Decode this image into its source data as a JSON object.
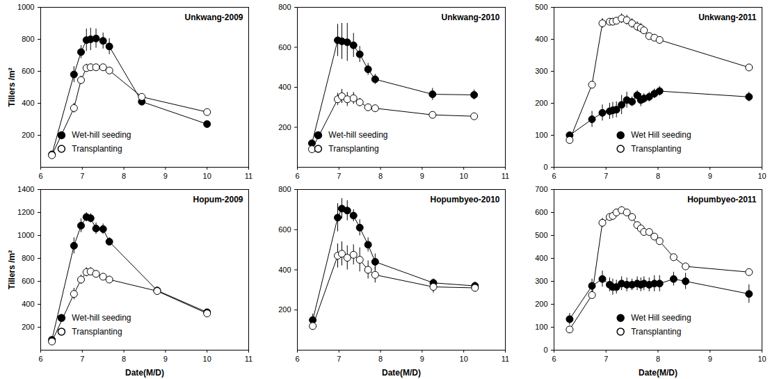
{
  "chart_data": [
    {
      "type": "line",
      "title": "Unkwang-2009",
      "ylabel": "Tillers /m²",
      "legend": "lower left",
      "xlim": [
        6,
        11
      ],
      "xticks": [
        6,
        7,
        8,
        9,
        10,
        11
      ],
      "ylim": [
        0,
        1000
      ],
      "yticks": [
        200,
        400,
        600,
        800,
        1000
      ],
      "x": [
        6.27,
        6.8,
        6.97,
        7.1,
        7.2,
        7.33,
        7.5,
        7.65,
        8.43,
        10.0
      ],
      "series": [
        {
          "name": "Wet-hill seeding",
          "color": "#000000",
          "marker": "filled_circle",
          "values": [
            80,
            580,
            720,
            795,
            800,
            805,
            790,
            755,
            410,
            270
          ],
          "errors": [
            10,
            50,
            40,
            70,
            70,
            60,
            50,
            50,
            20,
            15
          ]
        },
        {
          "name": "Transplanting",
          "color": "#000000",
          "marker": "open_circle",
          "values": [
            75,
            370,
            545,
            620,
            625,
            625,
            625,
            605,
            440,
            345
          ],
          "errors": [
            10,
            30,
            25,
            25,
            20,
            15,
            15,
            10,
            15,
            10
          ]
        }
      ]
    },
    {
      "type": "line",
      "title": "Unkwang-2010",
      "legend": "lower left",
      "xlim": [
        6,
        11
      ],
      "xticks": [
        6,
        7,
        8,
        9,
        10,
        11
      ],
      "ylim": [
        0,
        800
      ],
      "yticks": [
        200,
        400,
        600,
        800
      ],
      "x": [
        6.35,
        6.97,
        7.07,
        7.2,
        7.35,
        7.5,
        7.7,
        7.87,
        9.25,
        10.25
      ],
      "series": [
        {
          "name": "Wet-hill seeding",
          "color": "#000000",
          "marker": "filled_circle",
          "values": [
            120,
            635,
            630,
            625,
            610,
            565,
            490,
            440,
            365,
            362
          ],
          "errors": [
            15,
            80,
            90,
            95,
            60,
            40,
            30,
            25,
            30,
            25
          ]
        },
        {
          "name": "Transplanting",
          "color": "#000000",
          "marker": "open_circle",
          "values": [
            90,
            340,
            355,
            340,
            345,
            325,
            300,
            295,
            262,
            255
          ],
          "errors": [
            10,
            30,
            35,
            35,
            30,
            20,
            15,
            15,
            10,
            10
          ]
        }
      ]
    },
    {
      "type": "line",
      "title": "Unkwang-2011",
      "legend": "lower right",
      "xlim": [
        6,
        10
      ],
      "xticks": [
        6,
        7,
        8,
        9,
        10
      ],
      "ylim": [
        0,
        500
      ],
      "yticks": [
        0,
        100,
        200,
        300,
        400,
        500
      ],
      "x": [
        6.3,
        6.73,
        6.93,
        7.07,
        7.13,
        7.2,
        7.3,
        7.4,
        7.5,
        7.6,
        7.67,
        7.73,
        7.83,
        7.93,
        8.03,
        9.75
      ],
      "series": [
        {
          "name": "Wet Hill seeding",
          "color": "#000000",
          "marker": "filled_circle",
          "values": [
            100,
            150,
            170,
            175,
            178,
            180,
            195,
            210,
            205,
            225,
            210,
            215,
            220,
            230,
            238,
            220
          ],
          "errors": [
            10,
            25,
            25,
            25,
            25,
            25,
            30,
            25,
            15,
            15,
            20,
            15,
            15,
            15,
            15,
            15
          ]
        },
        {
          "name": "Transplanting",
          "color": "#000000",
          "marker": "open_circle",
          "values": [
            85,
            258,
            450,
            455,
            455,
            458,
            465,
            460,
            450,
            440,
            435,
            428,
            410,
            405,
            398,
            312
          ],
          "errors": [
            10,
            10,
            15,
            10,
            10,
            10,
            15,
            15,
            15,
            15,
            15,
            10,
            10,
            10,
            10,
            10
          ]
        }
      ]
    },
    {
      "type": "line",
      "title": "Hopum-2009",
      "ylabel": "Tillers /m²",
      "xlabel": "Date(M/D)",
      "legend": "lower left",
      "xlim": [
        6,
        11
      ],
      "xticks": [
        6,
        7,
        8,
        9,
        10,
        11
      ],
      "ylim": [
        0,
        1400
      ],
      "yticks": [
        200,
        400,
        600,
        800,
        1000,
        1200,
        1400
      ],
      "x": [
        6.27,
        6.8,
        6.97,
        7.1,
        7.2,
        7.33,
        7.5,
        7.65,
        8.8,
        10.0
      ],
      "series": [
        {
          "name": "Wet-hill seeding",
          "color": "#000000",
          "marker": "filled_circle",
          "values": [
            90,
            910,
            1085,
            1160,
            1150,
            1060,
            1055,
            945,
            520,
            330
          ],
          "errors": [
            10,
            70,
            60,
            40,
            40,
            50,
            45,
            35,
            30,
            20
          ]
        },
        {
          "name": "Transplanting",
          "color": "#000000",
          "marker": "open_circle",
          "values": [
            75,
            490,
            615,
            680,
            685,
            665,
            640,
            615,
            515,
            320
          ],
          "errors": [
            10,
            50,
            40,
            40,
            35,
            25,
            20,
            15,
            25,
            15
          ]
        }
      ]
    },
    {
      "type": "line",
      "title": "Hopumbyeo-2010",
      "xlabel": "Date(M/D)",
      "xlim": [
        6,
        11
      ],
      "xticks": [
        6,
        7,
        8,
        9,
        10,
        11
      ],
      "ylim": [
        0,
        800
      ],
      "yticks": [
        200,
        400,
        600,
        800
      ],
      "x": [
        6.37,
        6.97,
        7.07,
        7.2,
        7.35,
        7.5,
        7.7,
        7.87,
        9.27,
        10.27
      ],
      "series": [
        {
          "name": "Wet-hill seeding",
          "color": "#000000",
          "marker": "filled_circle",
          "values": [
            150,
            660,
            705,
            695,
            670,
            610,
            525,
            440,
            335,
            320
          ],
          "errors": [
            30,
            70,
            50,
            50,
            30,
            40,
            35,
            40,
            20,
            20
          ]
        },
        {
          "name": "Transplanting",
          "color": "#000000",
          "marker": "open_circle",
          "values": [
            120,
            470,
            480,
            460,
            475,
            450,
            400,
            375,
            315,
            310
          ],
          "errors": [
            20,
            60,
            60,
            60,
            50,
            60,
            45,
            40,
            30,
            20
          ]
        }
      ]
    },
    {
      "type": "line",
      "title": "Hopumbyeo-2011",
      "xlabel": "Date(M/D)",
      "legend": "lower right",
      "xlim": [
        6,
        10
      ],
      "xticks": [
        6,
        7,
        8,
        9,
        10
      ],
      "ylim": [
        0,
        700
      ],
      "yticks": [
        0,
        100,
        200,
        300,
        400,
        500,
        600,
        700
      ],
      "x": [
        6.3,
        6.73,
        6.93,
        7.07,
        7.13,
        7.2,
        7.3,
        7.4,
        7.5,
        7.6,
        7.67,
        7.73,
        7.83,
        7.93,
        8.03,
        8.3,
        8.53,
        9.75
      ],
      "series": [
        {
          "name": "Wet Hill seeding",
          "color": "#000000",
          "marker": "filled_circle",
          "values": [
            135,
            280,
            310,
            285,
            275,
            275,
            290,
            285,
            285,
            290,
            285,
            290,
            285,
            290,
            290,
            310,
            300,
            245
          ],
          "errors": [
            25,
            30,
            35,
            30,
            35,
            30,
            30,
            30,
            25,
            30,
            30,
            30,
            30,
            35,
            35,
            30,
            35,
            40
          ]
        },
        {
          "name": "Transplanting",
          "color": "#000000",
          "marker": "open_circle",
          "values": [
            90,
            240,
            555,
            580,
            585,
            600,
            610,
            600,
            580,
            545,
            530,
            515,
            515,
            495,
            475,
            405,
            365,
            340
          ],
          "errors": [
            15,
            10,
            20,
            15,
            15,
            15,
            15,
            15,
            15,
            10,
            10,
            10,
            10,
            10,
            10,
            10,
            10,
            10
          ]
        }
      ]
    }
  ]
}
